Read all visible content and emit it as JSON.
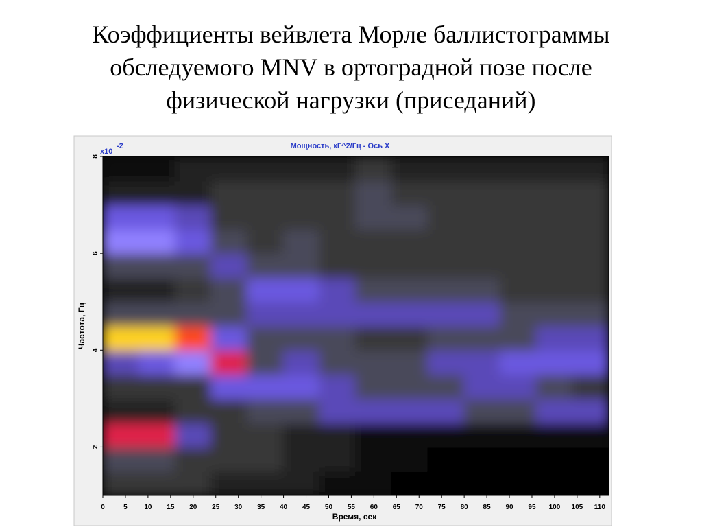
{
  "chart_data": {
    "type": "heatmap",
    "title": [
      "Коэффициенты вейвлета Морле баллистограммы",
      "обследуемого MNV в ортоградной позе после",
      "физической нагрузки (приседаний)"
    ],
    "subtitle": "Мощность, кГ^2/Гц - Ось X",
    "x_label": "Время, сек",
    "y_label": "Частота, Гц",
    "y_scale_label": "x10",
    "y_scale_exponent": "-2",
    "xlim": [
      0,
      112
    ],
    "ylim": [
      1,
      8
    ],
    "xticks": [
      0,
      5,
      10,
      15,
      20,
      25,
      30,
      35,
      40,
      45,
      50,
      55,
      60,
      65,
      70,
      75,
      80,
      85,
      90,
      95,
      100,
      105,
      110
    ],
    "yticks": [
      2,
      4,
      6,
      8
    ],
    "x": [
      4,
      12,
      20,
      28,
      36,
      44,
      52,
      60,
      68,
      76,
      84,
      92,
      100,
      108
    ],
    "y": [
      1.25,
      1.75,
      2.25,
      2.75,
      3.25,
      3.75,
      4.25,
      4.75,
      5.25,
      5.75,
      6.25,
      6.75,
      7.25,
      7.75
    ],
    "values": [
      [
        3,
        3,
        3,
        2,
        2,
        2,
        1,
        1,
        0,
        0,
        0,
        0,
        0,
        0
      ],
      [
        4,
        4,
        3,
        3,
        3,
        2,
        2,
        1,
        1,
        0,
        0,
        0,
        0,
        0
      ],
      [
        8,
        8,
        5,
        3,
        3,
        2,
        2,
        1,
        1,
        1,
        1,
        1,
        1,
        1
      ],
      [
        2,
        2,
        3,
        3,
        4,
        4,
        5,
        5,
        5,
        5,
        4,
        4,
        5,
        5
      ],
      [
        3,
        3,
        3,
        6,
        6,
        6,
        5,
        4,
        4,
        4,
        5,
        5,
        4,
        3
      ],
      [
        5,
        6,
        7,
        8,
        4,
        5,
        4,
        4,
        4,
        5,
        5,
        6,
        6,
        6
      ],
      [
        10,
        10,
        9,
        6,
        4,
        4,
        4,
        3,
        3,
        4,
        4,
        4,
        5,
        5
      ],
      [
        4,
        4,
        4,
        4,
        5,
        5,
        5,
        5,
        5,
        5,
        5,
        4,
        4,
        4
      ],
      [
        2,
        2,
        3,
        4,
        6,
        6,
        5,
        4,
        4,
        4,
        4,
        3,
        3,
        3
      ],
      [
        4,
        4,
        4,
        5,
        4,
        4,
        3,
        3,
        3,
        3,
        3,
        3,
        3,
        3
      ],
      [
        7,
        7,
        6,
        4,
        3,
        4,
        3,
        3,
        3,
        3,
        3,
        3,
        3,
        3
      ],
      [
        6,
        6,
        5,
        3,
        3,
        3,
        3,
        4,
        4,
        3,
        3,
        3,
        3,
        3
      ],
      [
        2,
        2,
        2,
        3,
        3,
        3,
        3,
        4,
        3,
        3,
        3,
        3,
        3,
        3
      ],
      [
        1,
        1,
        2,
        2,
        2,
        2,
        2,
        3,
        2,
        2,
        2,
        2,
        2,
        2
      ]
    ],
    "colormap": [
      "#000000",
      "#111111",
      "#222222",
      "#383838",
      "#4a4a5a",
      "#5a4ab8",
      "#6a58e0",
      "#9080ff",
      "#e0204a",
      "#ff4a1a",
      "#ffd21a"
    ]
  }
}
